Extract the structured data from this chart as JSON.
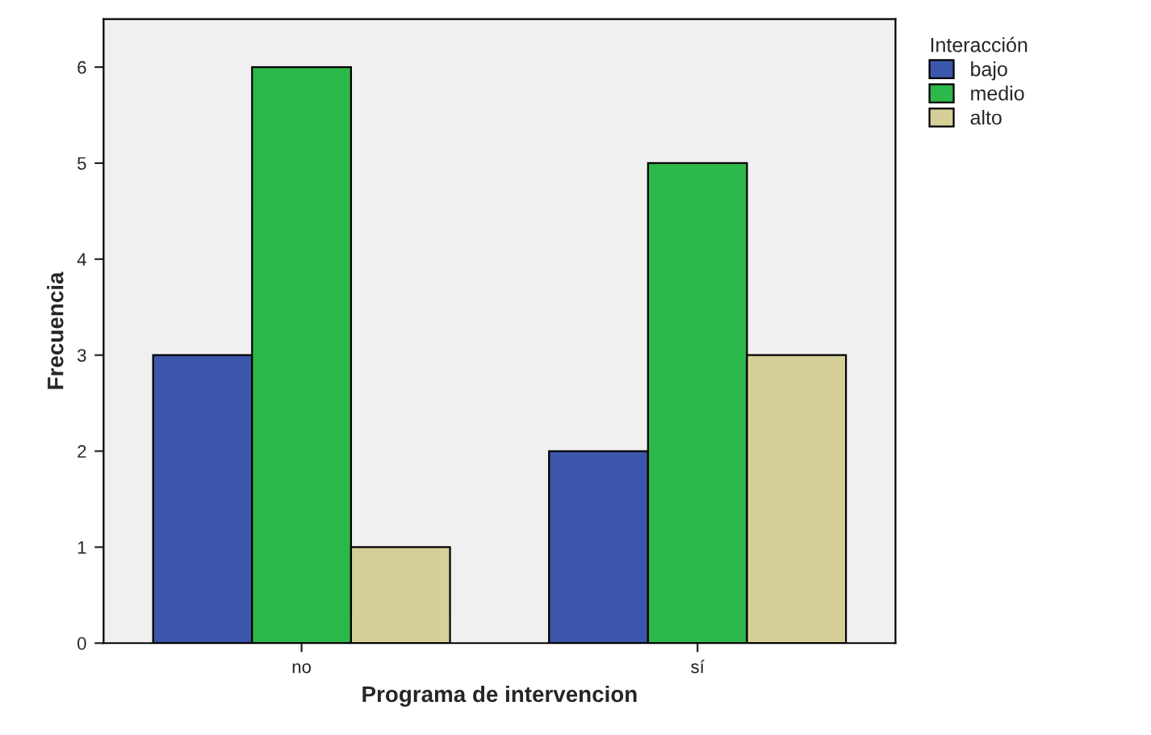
{
  "chart_data": {
    "type": "bar",
    "xlabel": "Programa de intervencion",
    "ylabel": "Frecuencia",
    "legend_title": "Interacción",
    "categories": [
      "no",
      "sí"
    ],
    "series": [
      {
        "name": "bajo",
        "color": "#3c56ac",
        "values": [
          3,
          2
        ]
      },
      {
        "name": "medio",
        "color": "#2db84b",
        "values": [
          6,
          5
        ]
      },
      {
        "name": "alto",
        "color": "#d6cf98",
        "values": [
          1,
          3
        ]
      }
    ],
    "ylim": [
      0,
      6.5
    ],
    "yticks": [
      0,
      1,
      2,
      3,
      4,
      5,
      6
    ],
    "grid": false,
    "legend": "top right"
  }
}
